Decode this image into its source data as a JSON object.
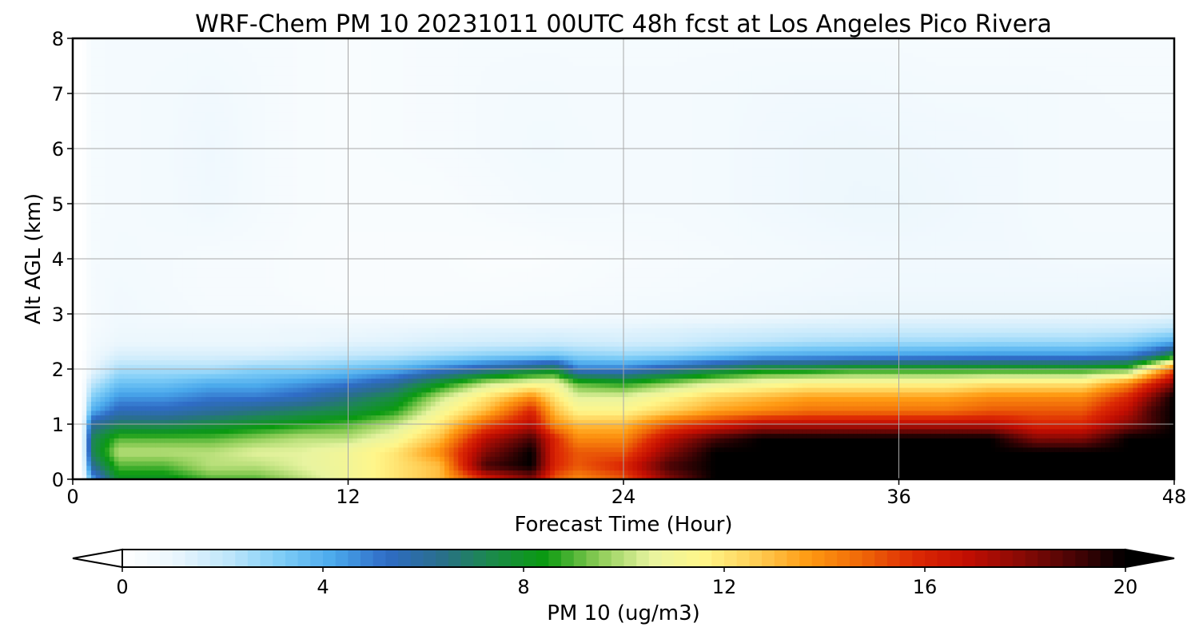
{
  "chart_data": {
    "type": "heatmap",
    "title": "WRF-Chem PM 10  20231011 00UTC 48h fcst at Los Angeles Pico Rivera",
    "xlabel": "Forecast Time (Hour)",
    "ylabel": "Alt AGL (km)",
    "xlim": [
      0,
      48
    ],
    "ylim": [
      0,
      8
    ],
    "x_ticks": [
      "0",
      "12",
      "24",
      "36",
      "48"
    ],
    "y_ticks": [
      "0",
      "1",
      "2",
      "3",
      "4",
      "5",
      "6",
      "7",
      "8"
    ],
    "grid": true,
    "x": [
      0,
      0.4,
      0.8,
      2,
      4,
      6,
      8,
      10,
      12,
      14,
      16,
      18,
      20,
      21,
      22,
      24,
      26,
      28,
      30,
      32,
      34,
      36,
      38,
      40,
      42,
      44,
      46,
      47,
      48
    ],
    "y": [
      0,
      0.25,
      0.5,
      0.75,
      1,
      1.25,
      1.5,
      1.75,
      2,
      2.25,
      2.5,
      2.75,
      3,
      3.5,
      4,
      5,
      6,
      7,
      8
    ],
    "values": [
      [
        0,
        0,
        4,
        8,
        8,
        9,
        9,
        10,
        11,
        12,
        13,
        16,
        18,
        15,
        14,
        15,
        18,
        20,
        20,
        20,
        20,
        20,
        20,
        20,
        20,
        20,
        20,
        20,
        20
      ],
      [
        0,
        0,
        6,
        9,
        9,
        10,
        10,
        10.5,
        11,
        12,
        13,
        19,
        20,
        16,
        15,
        16,
        19,
        20,
        20,
        20,
        20,
        20,
        20,
        20,
        20,
        20,
        20,
        20,
        20
      ],
      [
        0,
        0,
        7,
        10,
        10,
        10,
        10.5,
        10.5,
        11,
        12,
        14,
        18,
        20,
        16,
        15,
        15,
        18,
        20,
        20,
        20,
        20,
        20,
        20,
        20,
        20,
        20,
        20,
        20,
        20
      ],
      [
        0,
        0,
        7,
        9,
        9,
        9,
        9.5,
        10,
        10,
        11,
        13,
        17,
        19,
        16,
        14,
        14,
        17,
        19,
        20,
        20,
        20,
        20,
        20,
        20,
        18,
        18,
        20,
        20,
        20
      ],
      [
        0,
        0,
        6,
        7,
        7,
        7.5,
        8,
        8.5,
        9,
        10,
        12,
        15,
        17,
        14,
        13,
        13,
        15,
        16,
        17,
        17,
        17,
        17,
        17,
        17,
        16,
        16,
        18,
        19,
        20
      ],
      [
        0,
        0,
        4,
        5.5,
        5.5,
        6,
        6.5,
        7,
        7.5,
        8.5,
        11,
        13,
        16,
        13,
        11.5,
        11.5,
        12.5,
        13.5,
        14,
        14.5,
        14.5,
        14.5,
        14.5,
        15,
        15,
        15,
        17,
        19,
        20
      ],
      [
        0,
        0,
        3,
        4.5,
        4.5,
        5,
        5,
        5.5,
        6.5,
        7.5,
        10,
        12,
        14,
        12,
        10.5,
        10.5,
        11.5,
        12.5,
        13,
        13.5,
        13.5,
        13.5,
        13.5,
        14,
        14,
        14,
        16,
        18,
        20
      ],
      [
        0,
        0,
        2,
        3.5,
        3.5,
        4,
        4,
        4.5,
        5,
        6,
        8,
        10,
        11,
        11,
        9,
        8.5,
        9.5,
        10.5,
        11,
        11.5,
        11.5,
        11.5,
        11.5,
        12,
        12,
        12,
        14,
        16,
        18
      ],
      [
        0,
        0,
        1,
        2.5,
        2.5,
        2.5,
        3,
        3,
        3.5,
        4,
        5,
        6,
        7,
        7.5,
        5,
        5,
        6,
        7,
        8,
        8,
        8.5,
        8.5,
        8.5,
        8.5,
        8.5,
        8.5,
        9,
        12,
        15
      ],
      [
        0,
        0,
        0.8,
        1.5,
        1.5,
        1.5,
        1.5,
        1.8,
        2,
        2.2,
        2.6,
        3,
        3.2,
        3.4,
        3,
        2.8,
        3,
        3.5,
        4,
        4.2,
        4.3,
        4.4,
        4.5,
        4.6,
        4.6,
        4.6,
        5,
        6,
        8
      ],
      [
        0,
        0,
        0.6,
        1,
        1,
        1,
        1,
        1,
        1.2,
        1.3,
        1.5,
        1.6,
        1.7,
        1.8,
        1.7,
        1.6,
        1.7,
        2,
        2.2,
        2.4,
        2.5,
        2.6,
        2.6,
        2.7,
        2.7,
        2.7,
        3,
        3.5,
        4
      ],
      [
        0,
        0,
        0.5,
        0.8,
        0.8,
        0.8,
        0.8,
        0.9,
        0.9,
        1,
        1.1,
        1.2,
        1.2,
        1.2,
        1.2,
        1.2,
        1.3,
        1.4,
        1.5,
        1.6,
        1.6,
        1.7,
        1.7,
        1.7,
        1.7,
        1.7,
        1.8,
        2,
        2.2
      ],
      [
        0,
        0,
        0.5,
        0.7,
        0.6,
        0.5,
        0.5,
        0.45,
        0.4,
        0.4,
        0.4,
        0.45,
        0.5,
        0.5,
        0.55,
        0.6,
        0.65,
        0.7,
        0.8,
        0.9,
        1,
        1,
        1,
        1,
        1,
        1,
        1,
        1,
        1.1
      ],
      [
        0,
        0,
        0.5,
        0.65,
        0.55,
        0.45,
        0.45,
        0.35,
        0.3,
        0.3,
        0.3,
        0.3,
        0.35,
        0.35,
        0.4,
        0.45,
        0.5,
        0.55,
        0.6,
        0.65,
        0.7,
        0.75,
        0.75,
        0.75,
        0.75,
        0.75,
        0.8,
        0.8,
        0.85
      ],
      [
        0,
        0,
        0.5,
        0.6,
        0.55,
        0.45,
        0.45,
        0.35,
        0.3,
        0.3,
        0.3,
        0.25,
        0.25,
        0.3,
        0.35,
        0.4,
        0.45,
        0.5,
        0.55,
        0.6,
        0.65,
        0.7,
        0.7,
        0.7,
        0.65,
        0.6,
        0.6,
        0.6,
        0.6
      ],
      [
        0,
        0,
        0.5,
        0.55,
        0.6,
        0.75,
        0.55,
        0.4,
        0.35,
        0.35,
        0.35,
        0.45,
        0.55,
        0.6,
        0.6,
        0.55,
        0.55,
        0.6,
        0.7,
        0.8,
        0.9,
        0.9,
        0.8,
        0.7,
        0.6,
        0.55,
        0.55,
        0.55,
        0.55
      ],
      [
        0,
        0,
        0.5,
        0.55,
        0.6,
        0.8,
        0.55,
        0.4,
        0.35,
        0.4,
        0.45,
        0.55,
        0.65,
        0.65,
        0.6,
        0.55,
        0.55,
        0.6,
        0.7,
        0.8,
        0.85,
        0.8,
        0.75,
        0.7,
        0.6,
        0.55,
        0.55,
        0.55,
        0.55
      ],
      [
        0,
        0,
        0.5,
        0.55,
        0.6,
        0.7,
        0.55,
        0.4,
        0.35,
        0.4,
        0.45,
        0.55,
        0.6,
        0.6,
        0.55,
        0.55,
        0.55,
        0.6,
        0.65,
        0.7,
        0.7,
        0.65,
        0.6,
        0.6,
        0.6,
        0.55,
        0.5,
        0.5,
        0.5
      ],
      [
        0,
        0,
        0.5,
        0.55,
        0.55,
        0.55,
        0.5,
        0.4,
        0.35,
        0.4,
        0.45,
        0.5,
        0.5,
        0.5,
        0.5,
        0.5,
        0.5,
        0.5,
        0.5,
        0.5,
        0.5,
        0.5,
        0.45,
        0.45,
        0.45,
        0.45,
        0.45,
        0.45,
        0.45
      ]
    ],
    "colorbar": {
      "label": "PM 10  (ug/m3)",
      "min": 0,
      "max": 20,
      "ticks": [
        "0",
        "4",
        "8",
        "12",
        "16",
        "20"
      ],
      "extend": "both",
      "colors": [
        "#ffffff",
        "#eaf6fd",
        "#bfe6fb",
        "#7fcdf7",
        "#4aa9ec",
        "#2f6cc6",
        "#2a6e8e",
        "#1b8a4a",
        "#0a9a10",
        "#8acb55",
        "#e8f4a0",
        "#fff68a",
        "#ffce55",
        "#ff9a12",
        "#ef6808",
        "#dd2a04",
        "#c20e02",
        "#8a0a05",
        "#4a0405",
        "#000000"
      ]
    }
  }
}
